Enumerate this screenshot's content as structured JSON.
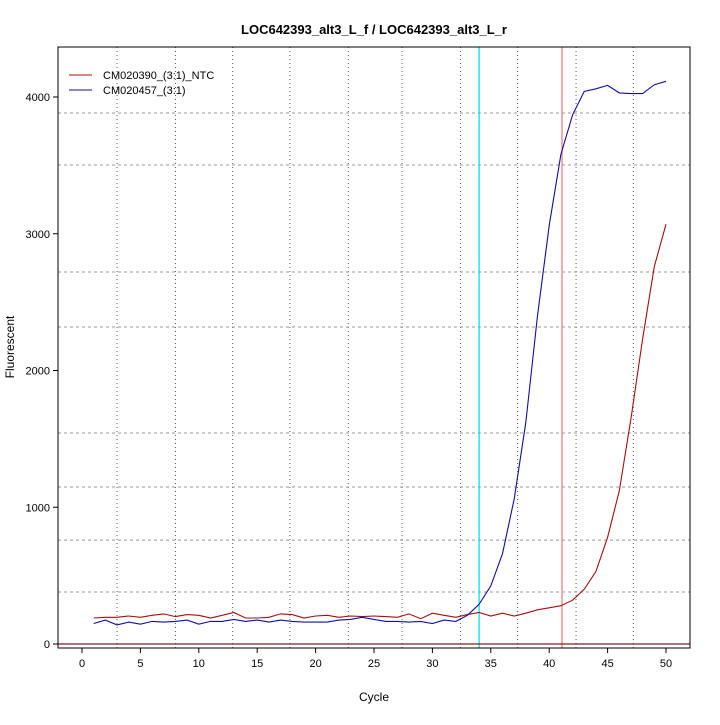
{
  "chart_data": {
    "type": "line",
    "title": "LOC642393_alt3_L_f / LOC642393_alt3_L_r",
    "xlabel": "Cycle",
    "ylabel": "Fluorescent",
    "xlim": [
      -2,
      52
    ],
    "ylim": [
      -20,
      4400
    ],
    "x_ticks": [
      0,
      5,
      10,
      15,
      20,
      25,
      30,
      35,
      40,
      45,
      50
    ],
    "y_ticks": [
      0,
      1000,
      2000,
      3000,
      4000
    ],
    "legend_position": "top-left",
    "grid": {
      "vertical_dotted_x": [
        3.0,
        8.0,
        12.9,
        17.8,
        22.8,
        27.4,
        32.4,
        37.3,
        42.3,
        47.2
      ],
      "horizontal_dashed_y": [
        380,
        760,
        1148,
        1543,
        2318,
        2720,
        3503,
        3883
      ]
    },
    "reference_lines": [
      {
        "orientation": "vertical",
        "x": 34.0,
        "color": "#00e5ee"
      },
      {
        "orientation": "vertical",
        "x": 41.1,
        "color": "#f08080"
      },
      {
        "orientation": "horizontal",
        "y": 0,
        "color": "#8b1a1a"
      }
    ],
    "x": [
      1,
      2,
      3,
      4,
      5,
      6,
      7,
      8,
      9,
      10,
      11,
      12,
      13,
      14,
      15,
      16,
      17,
      18,
      19,
      20,
      21,
      22,
      23,
      24,
      25,
      26,
      27,
      28,
      29,
      30,
      31,
      32,
      33,
      34,
      35,
      36,
      37,
      38,
      39,
      40,
      41,
      42,
      43,
      44,
      45,
      46,
      47,
      48,
      49,
      50
    ],
    "series": [
      {
        "name": "CM020390_(3:1)_NTC",
        "color": "#a01010",
        "values": [
          190,
          195,
          195,
          205,
          195,
          210,
          220,
          200,
          215,
          210,
          190,
          210,
          230,
          190,
          190,
          195,
          220,
          215,
          190,
          205,
          210,
          195,
          205,
          200,
          205,
          200,
          195,
          220,
          185,
          225,
          210,
          195,
          215,
          230,
          205,
          225,
          205,
          225,
          250,
          265,
          280,
          320,
          400,
          530,
          780,
          1120,
          1650,
          2230,
          2760,
          3070
        ]
      },
      {
        "name": "CM020457_(3:1)",
        "color": "#1010a0",
        "values": [
          150,
          175,
          140,
          160,
          145,
          165,
          160,
          165,
          175,
          145,
          165,
          165,
          180,
          165,
          175,
          160,
          175,
          165,
          160,
          160,
          160,
          175,
          180,
          195,
          180,
          165,
          165,
          160,
          165,
          150,
          175,
          165,
          210,
          290,
          425,
          660,
          1060,
          1620,
          2400,
          3060,
          3580,
          3870,
          4040,
          4060,
          4085,
          4030,
          4025,
          4025,
          4090,
          4115
        ]
      }
    ]
  }
}
